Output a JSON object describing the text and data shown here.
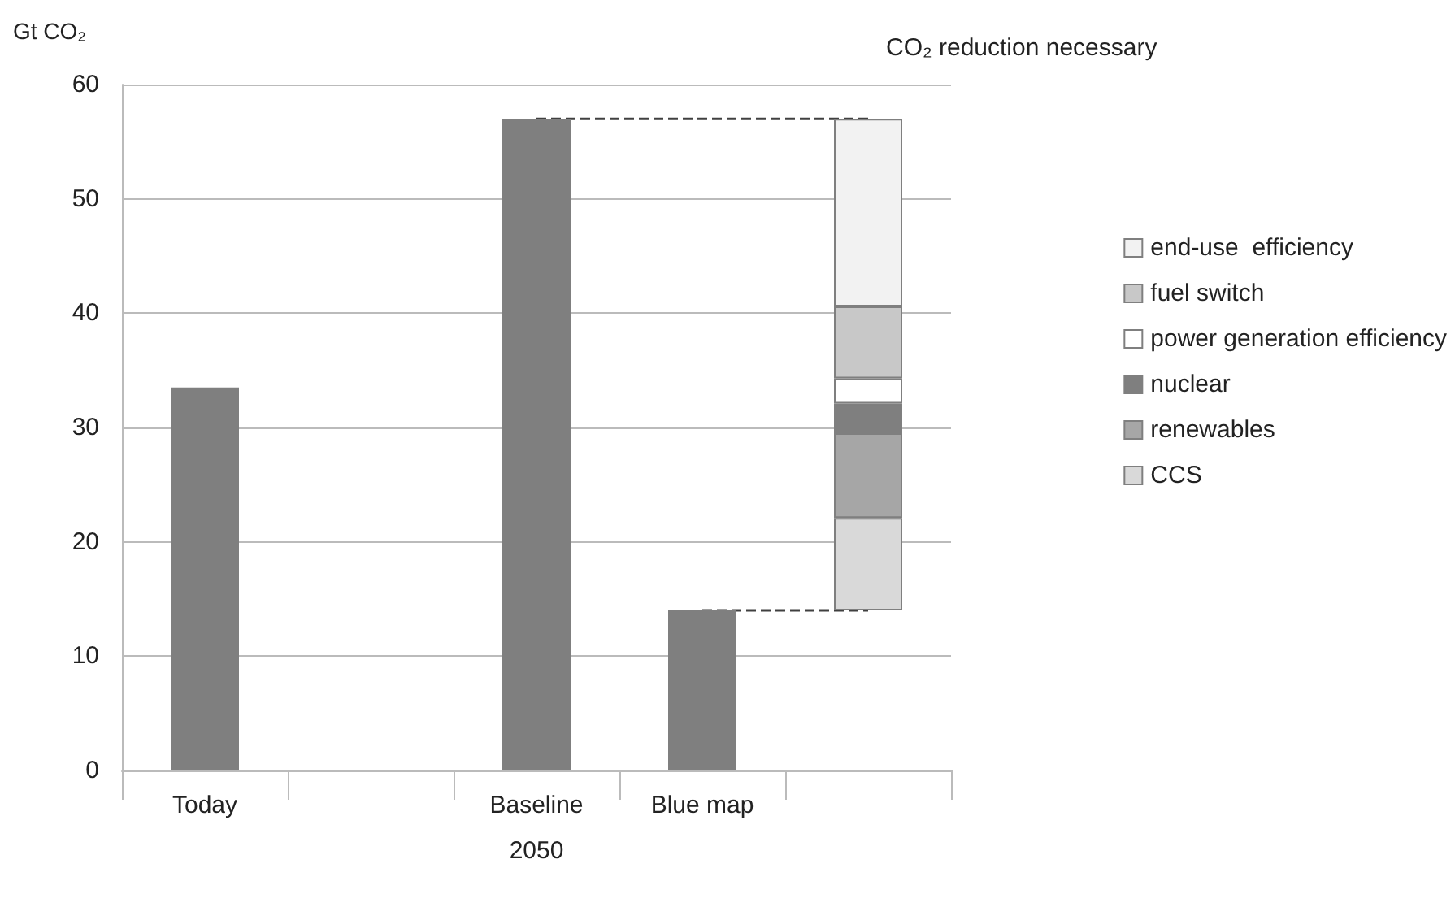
{
  "chart_data": {
    "type": "bar",
    "ylabel": "Gt CO₂",
    "xlabel": "2050",
    "annotations": [
      "CO₂ reduction necessary"
    ],
    "categories": [
      "Today",
      null,
      "Baseline",
      "Blue map",
      null
    ],
    "ylim": [
      0,
      60
    ],
    "yticks": [
      0,
      10,
      20,
      30,
      40,
      50,
      60
    ],
    "grid": "y",
    "legend": "right",
    "series": [
      {
        "color": "#7f7f7f",
        "values": [
          33.5,
          null,
          57,
          14,
          null
        ]
      },
      {
        "name": "CCS",
        "color": "#d9d9d9",
        "base": [
          null,
          null,
          null,
          null,
          14
        ],
        "values": [
          null,
          null,
          null,
          null,
          8.1
        ]
      },
      {
        "name": "renewables",
        "color": "#a6a6a6",
        "base": [
          null,
          null,
          null,
          null,
          22.1
        ],
        "values": [
          null,
          null,
          null,
          null,
          7.4
        ]
      },
      {
        "name": "nuclear",
        "color": "#7f7f7f",
        "base": [
          null,
          null,
          null,
          null,
          29.5
        ],
        "values": [
          null,
          null,
          null,
          null,
          2.6
        ]
      },
      {
        "name": "power generation efficiency",
        "color": "#ffffff",
        "base": [
          null,
          null,
          null,
          null,
          32.1
        ],
        "values": [
          null,
          null,
          null,
          null,
          2.2
        ]
      },
      {
        "name": "fuel switch",
        "color": "#c8c8c8",
        "base": [
          null,
          null,
          null,
          null,
          34.3
        ],
        "values": [
          null,
          null,
          null,
          null,
          6.3
        ]
      },
      {
        "name": "end-use  efficiency",
        "color": "#f2f2f2",
        "base": [
          null,
          null,
          null,
          null,
          40.6
        ],
        "values": [
          null,
          null,
          null,
          null,
          16.4
        ]
      },
      {
        "type": "line",
        "line_style": "dashed",
        "marker": "none",
        "color": "#404040",
        "values": [
          null,
          null,
          57,
          57,
          57
        ]
      },
      {
        "type": "line",
        "line_style": "dashed",
        "marker": "none",
        "color": "#404040",
        "values": [
          null,
          null,
          null,
          14,
          14
        ]
      }
    ]
  }
}
